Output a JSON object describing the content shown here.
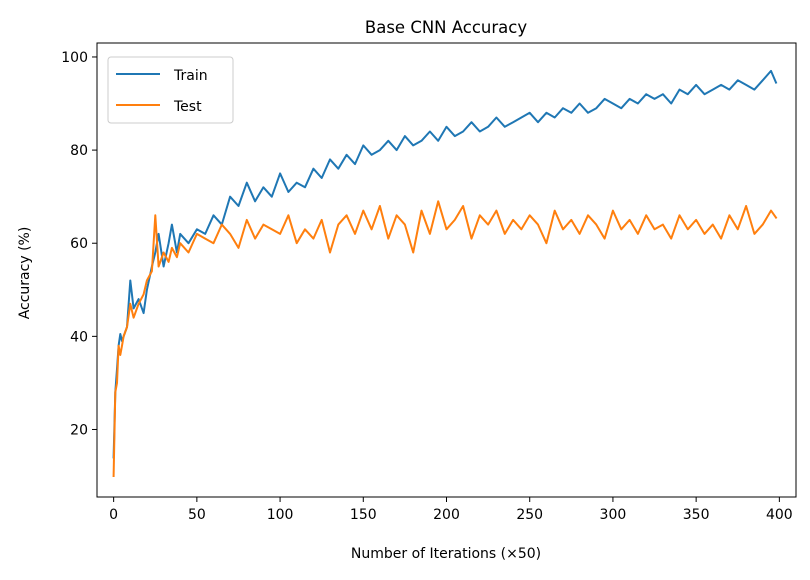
{
  "chart_data": {
    "type": "line",
    "title": "Base CNN Accuracy",
    "xlabel": "Number of Iterations (×50)",
    "ylabel": "Accuracy (%)",
    "xlim": [
      -10,
      410
    ],
    "ylim": [
      5.5,
      103
    ],
    "xticks": [
      0,
      50,
      100,
      150,
      200,
      250,
      300,
      350,
      400
    ],
    "yticks": [
      20,
      40,
      60,
      80,
      100
    ],
    "grid": false,
    "legend_position": "top-left",
    "series": [
      {
        "name": "Train",
        "color": "#1f77b4",
        "x": [
          0,
          1,
          2,
          3,
          4,
          5,
          6,
          8,
          10,
          12,
          15,
          18,
          20,
          23,
          25,
          27,
          30,
          33,
          35,
          38,
          40,
          45,
          50,
          55,
          60,
          65,
          70,
          75,
          80,
          85,
          90,
          95,
          100,
          105,
          110,
          115,
          120,
          125,
          130,
          135,
          140,
          145,
          150,
          155,
          160,
          165,
          170,
          175,
          180,
          185,
          190,
          195,
          200,
          205,
          210,
          215,
          220,
          225,
          230,
          235,
          240,
          245,
          250,
          255,
          260,
          265,
          270,
          275,
          280,
          285,
          290,
          295,
          300,
          305,
          310,
          315,
          320,
          325,
          330,
          335,
          340,
          345,
          350,
          355,
          360,
          365,
          370,
          375,
          380,
          385,
          390,
          395,
          398
        ],
        "y": [
          14,
          28,
          33,
          38,
          40.5,
          39,
          40,
          42,
          52,
          46,
          48,
          45,
          50,
          55,
          58,
          62,
          55,
          60,
          64,
          58,
          62,
          60,
          63,
          62,
          66,
          64,
          70,
          68,
          73,
          69,
          72,
          70,
          75,
          71,
          73,
          72,
          76,
          74,
          78,
          76,
          79,
          77,
          81,
          79,
          80,
          82,
          80,
          83,
          81,
          82,
          84,
          82,
          85,
          83,
          84,
          86,
          84,
          85,
          87,
          85,
          86,
          87,
          88,
          86,
          88,
          87,
          89,
          88,
          90,
          88,
          89,
          91,
          90,
          89,
          91,
          90,
          92,
          91,
          92,
          90,
          93,
          92,
          94,
          92,
          93,
          94,
          93,
          95,
          94,
          93,
          95,
          97,
          94.5
        ]
      },
      {
        "name": "Test",
        "color": "#ff7f0e",
        "x": [
          0,
          1,
          2,
          3,
          4,
          5,
          6,
          8,
          10,
          12,
          15,
          18,
          20,
          23,
          25,
          27,
          30,
          33,
          35,
          38,
          40,
          45,
          50,
          55,
          60,
          65,
          70,
          75,
          80,
          85,
          90,
          95,
          100,
          105,
          110,
          115,
          120,
          125,
          130,
          135,
          140,
          145,
          150,
          155,
          160,
          165,
          170,
          175,
          180,
          185,
          190,
          195,
          200,
          205,
          210,
          215,
          220,
          225,
          230,
          235,
          240,
          245,
          250,
          255,
          260,
          265,
          270,
          275,
          280,
          285,
          290,
          295,
          300,
          305,
          310,
          315,
          320,
          325,
          330,
          335,
          340,
          345,
          350,
          355,
          360,
          365,
          370,
          375,
          380,
          385,
          390,
          395,
          398
        ],
        "y": [
          10,
          28,
          30,
          38,
          36,
          38,
          40,
          42,
          47,
          44,
          47,
          49,
          52,
          54,
          66,
          55,
          58,
          56,
          59,
          57,
          60,
          58,
          62,
          61,
          60,
          64,
          62,
          59,
          65,
          61,
          64,
          63,
          62,
          66,
          60,
          63,
          61,
          65,
          58,
          64,
          66,
          62,
          67,
          63,
          68,
          61,
          66,
          64,
          58,
          67,
          62,
          69,
          63,
          65,
          68,
          61,
          66,
          64,
          67,
          62,
          65,
          63,
          66,
          64,
          60,
          67,
          63,
          65,
          62,
          66,
          64,
          61,
          67,
          63,
          65,
          62,
          66,
          63,
          64,
          61,
          66,
          63,
          65,
          62,
          64,
          61,
          66,
          63,
          68,
          62,
          64,
          67,
          65.5
        ]
      }
    ]
  }
}
